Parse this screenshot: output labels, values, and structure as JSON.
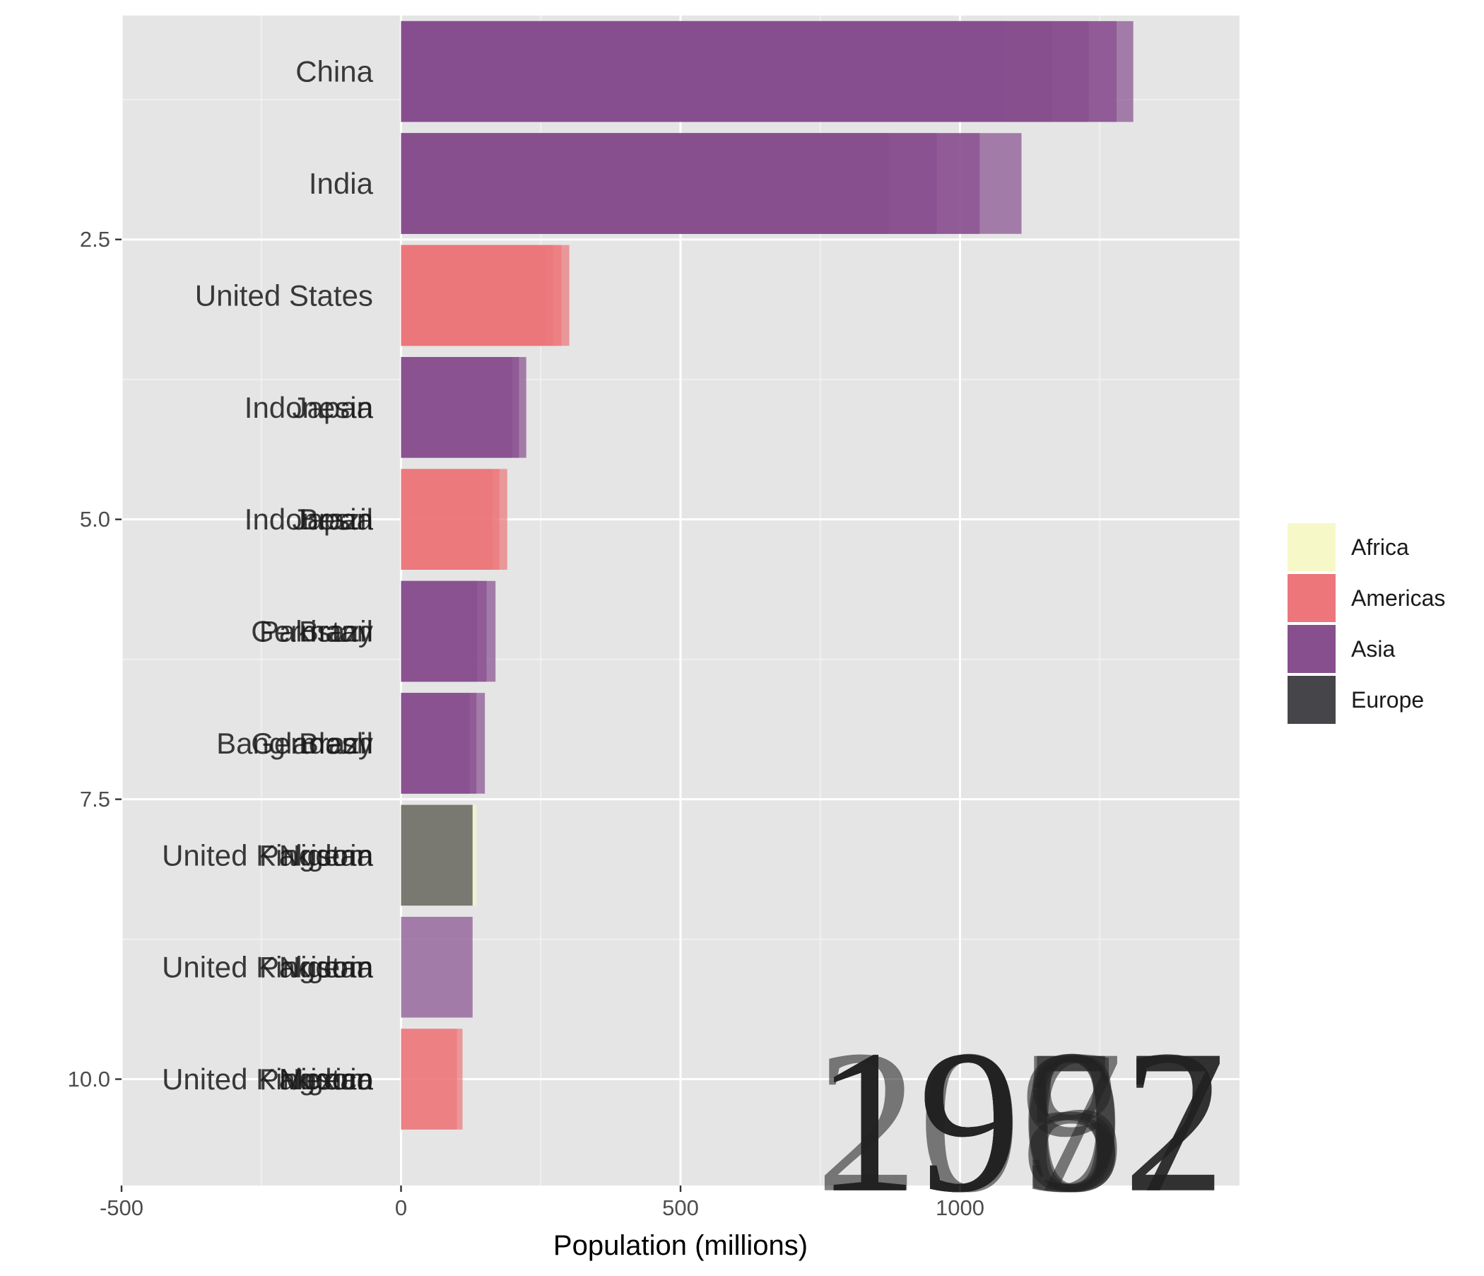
{
  "chart_data": {
    "type": "bar",
    "orientation": "horizontal",
    "xlabel": "Population (millions)",
    "ylabel": "",
    "xlim": [
      -500,
      1500
    ],
    "ylim": [
      0.5,
      10.95
    ],
    "x_ticks": [
      -500,
      0,
      500,
      1000
    ],
    "x_tick_labels": [
      "-500",
      "0",
      "500",
      "1000"
    ],
    "y_ticks": [
      2.5,
      5.0,
      7.5,
      10.0
    ],
    "y_tick_labels": [
      "2.5",
      "5.0",
      "7.5",
      "10.0"
    ],
    "grid": true,
    "legend_position": "right",
    "legend": [
      {
        "name": "Africa",
        "color": "#f7f8c8"
      },
      {
        "name": "Americas",
        "color": "#ec7679"
      },
      {
        "name": "Asia",
        "color": "#874f8e"
      },
      {
        "name": "Europe",
        "color": "#46464a"
      }
    ],
    "ranks": [
      {
        "rank": 1,
        "bars": [
          {
            "continent": "Asia",
            "value": 1310
          },
          {
            "continent": "Asia",
            "value": 1280
          },
          {
            "continent": "Asia",
            "value": 1230
          },
          {
            "continent": "Asia",
            "value": 1165
          },
          {
            "continent": "Asia",
            "value": 1080
          }
        ],
        "labels": [
          "China"
        ]
      },
      {
        "rank": 2,
        "bars": [
          {
            "continent": "Asia",
            "value": 1110
          },
          {
            "continent": "Asia",
            "value": 1035
          },
          {
            "continent": "Asia",
            "value": 958
          },
          {
            "continent": "Asia",
            "value": 872
          }
        ],
        "labels": [
          "India"
        ]
      },
      {
        "rank": 3,
        "bars": [
          {
            "continent": "Americas",
            "value": 301
          },
          {
            "continent": "Americas",
            "value": 287
          },
          {
            "continent": "Americas",
            "value": 272
          },
          {
            "continent": "Americas",
            "value": 257
          }
        ],
        "labels": [
          "United States"
        ]
      },
      {
        "rank": 4,
        "bars": [
          {
            "continent": "Asia",
            "value": 224
          },
          {
            "continent": "Asia",
            "value": 211
          },
          {
            "continent": "Asia",
            "value": 199
          }
        ],
        "labels": [
          "Indonesia",
          "Japan"
        ]
      },
      {
        "rank": 5,
        "bars": [
          {
            "continent": "Americas",
            "value": 190
          },
          {
            "continent": "Americas",
            "value": 176
          },
          {
            "continent": "Americas",
            "value": 163
          }
        ],
        "labels": [
          "Indonesia",
          "Brazil",
          "Japan"
        ]
      },
      {
        "rank": 6,
        "bars": [
          {
            "continent": "Asia",
            "value": 169
          },
          {
            "continent": "Asia",
            "value": 153
          },
          {
            "continent": "Asia",
            "value": 136
          }
        ],
        "labels": [
          "Germany",
          "Pakistan",
          "Brazil"
        ]
      },
      {
        "rank": 7,
        "bars": [
          {
            "continent": "Asia",
            "value": 150
          },
          {
            "continent": "Asia",
            "value": 135
          },
          {
            "continent": "Asia",
            "value": 123
          }
        ],
        "labels": [
          "Bangladesh",
          "Germany",
          "Brazil"
        ]
      },
      {
        "rank": 8,
        "bars": [
          {
            "continent": "Africa",
            "value": 135
          },
          {
            "continent": "Europe",
            "value": 128
          }
        ],
        "labels": [
          "United Kingdom",
          "Pakistan",
          "Nigeria"
        ]
      },
      {
        "rank": 9,
        "bars": [
          {
            "continent": "Asia",
            "value": 128
          }
        ],
        "labels": [
          "United Kingdom",
          "Pakistan",
          "Nigeria"
        ]
      },
      {
        "rank": 10,
        "bars": [
          {
            "continent": "Americas",
            "value": 110
          },
          {
            "continent": "Americas",
            "value": 100
          }
        ],
        "labels": [
          "United Kingdom",
          "Pakistan",
          "Nigeria",
          "Mexico"
        ]
      }
    ],
    "year_labels": [
      "1952",
      "1957",
      "1962",
      "1967",
      "1972",
      "1977",
      "1982",
      "1987",
      "1992",
      "1997",
      "2002",
      "2007"
    ]
  }
}
